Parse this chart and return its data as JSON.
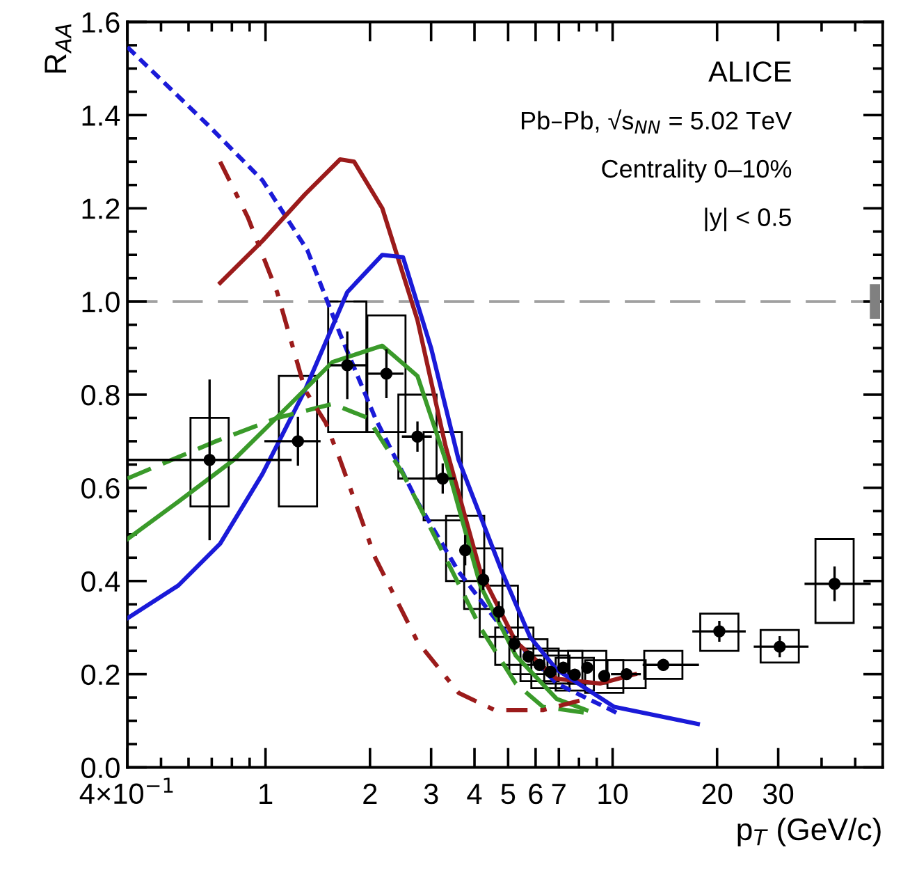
{
  "chart_data": {
    "type": "scatter",
    "xlabel": "p$_{T}$ (GeV/c)",
    "ylabel": "R$_{AA}$",
    "log": "x",
    "xlim": [
      0.4,
      60
    ],
    "ylim": [
      0,
      1.6
    ],
    "xticks": [
      {
        "value": 0.4,
        "label": "4×10$^{−1}$"
      },
      {
        "value": 0.5,
        "label": null
      },
      {
        "value": 0.6,
        "label": null
      },
      {
        "value": 0.7,
        "label": null
      },
      {
        "value": 0.8,
        "label": null
      },
      {
        "value": 0.9,
        "label": null
      },
      1,
      2,
      3,
      4,
      5,
      6,
      7,
      {
        "value": 8,
        "label": null
      },
      {
        "value": 9,
        "label": null
      },
      10,
      20,
      30,
      {
        "value": 40,
        "label": null
      },
      {
        "value": 50,
        "label": null
      }
    ],
    "yticks": [
      {
        "value": 0,
        "label": "0.0"
      },
      0.2,
      0.4,
      0.6,
      0.8,
      {
        "value": 1,
        "label": "1.0"
      },
      1.2,
      1.4,
      1.6
    ],
    "grid": false,
    "ref_lines": [
      {
        "axis": "y",
        "value": 1,
        "color": "#a0a0a0",
        "line_style": "dashed"
      }
    ],
    "annotations": [
      "ALICE",
      "Pb–Pb, √s$_{NN}$ = 5.02 TeV",
      "Centrality 0–10%",
      "|y| < 0.5"
    ],
    "series": [
      {
        "type": "bar",
        "color": "#000000",
        "line_style": "solid",
        "x": [
          0.69,
          1.24,
          1.72,
          2.23,
          2.74,
          3.24,
          3.76,
          4.24,
          4.7,
          5.21,
          5.72,
          6.16,
          6.62,
          7.21,
          7.78,
          8.45,
          9.46,
          10.97,
          14.0,
          20.3,
          30.3,
          43.6
        ],
        "base": [
          0.56,
          0.56,
          0.72,
          0.72,
          0.62,
          0.53,
          0.4,
          0.34,
          0.28,
          0.22,
          0.2,
          0.185,
          0.17,
          0.18,
          0.165,
          0.18,
          0.16,
          0.17,
          0.19,
          0.25,
          0.225,
          0.31
        ],
        "values": [
          0.19,
          0.28,
          0.28,
          0.25,
          0.18,
          0.19,
          0.14,
          0.13,
          0.11,
          0.08,
          0.075,
          0.07,
          0.07,
          0.07,
          0.07,
          0.07,
          0.07,
          0.06,
          0.06,
          0.08,
          0.07,
          0.18
        ]
      },
      {
        "type": "bar",
        "color": "#808080",
        "x": [
          57
        ],
        "base": [
          0.965
        ],
        "values": [
          0.07
        ]
      },
      {
        "color": "#000000",
        "marker": "circle",
        "x": [
          0.69,
          1.24,
          1.72,
          2.23,
          2.74,
          3.24,
          3.76,
          4.24,
          4.7,
          5.21,
          5.72,
          6.16,
          6.62,
          7.21,
          7.78,
          8.45,
          9.46,
          10.97,
          14.0,
          20.3,
          30.3,
          43.6
        ],
        "values": [
          0.66,
          0.7,
          0.863,
          0.845,
          0.71,
          0.62,
          0.466,
          0.403,
          0.334,
          0.265,
          0.238,
          0.22,
          0.205,
          0.214,
          0.199,
          0.214,
          0.196,
          0.2,
          0.22,
          0.292,
          0.259,
          0.394
        ],
        "errors": [
          0.17,
          0.05,
          0.07,
          0.05,
          0.03,
          0.03,
          0.03,
          0.02,
          0.02,
          0.015,
          0.01,
          0.01,
          0.01,
          0.01,
          0.01,
          0.01,
          0.01,
          0.01,
          0.01,
          0.02,
          0.02,
          0.035
        ],
        "xerrors": [
          [
            0.4,
            1.18
          ],
          [
            1.0,
            1.43
          ],
          [
            1.55,
            1.94
          ],
          0.25,
          0.25,
          0.25,
          null,
          null,
          null,
          null,
          null,
          null,
          null,
          null,
          null,
          null,
          null,
          1,
          [
            12.3,
            17.6
          ],
          [
            17.1,
            24.0
          ],
          [
            25.7,
            36.4
          ],
          [
            36,
            55
          ]
        ]
      },
      {
        "type": "line",
        "color": "#1a1ad8",
        "line_style": "dotted",
        "x": [
          0.4,
          0.68,
          0.98,
          1.32,
          1.64,
          2.07,
          2.74,
          3.6,
          4.8,
          6.9,
          10.1,
          10.6
        ],
        "values": [
          1.546,
          1.38,
          1.26,
          1.11,
          0.93,
          0.75,
          0.57,
          0.42,
          0.3,
          0.18,
          0.12,
          0.11
        ]
      },
      {
        "type": "line",
        "color": "#9b1b1b",
        "line_style": "solid",
        "x": [
          0.74,
          0.98,
          1.3,
          1.64,
          1.8,
          2.17,
          2.74,
          3.3,
          4.16,
          5.26,
          6.9,
          9.2,
          11.6
        ],
        "values": [
          1.04,
          1.13,
          1.23,
          1.305,
          1.3,
          1.2,
          0.96,
          0.69,
          0.42,
          0.27,
          0.19,
          0.18,
          0.2
        ]
      },
      {
        "type": "line",
        "color": "#1a1ad8",
        "line_style": "solid",
        "x": [
          0.4,
          0.56,
          0.74,
          0.98,
          1.3,
          1.72,
          2.17,
          2.49,
          3.0,
          3.6,
          4.8,
          5.78,
          6.9,
          10.1,
          17.6
        ],
        "values": [
          0.32,
          0.39,
          0.48,
          0.63,
          0.81,
          1.02,
          1.1,
          1.095,
          0.9,
          0.66,
          0.42,
          0.28,
          0.21,
          0.13,
          0.093
        ]
      },
      {
        "type": "line",
        "color": "#3a9a2a",
        "line_style": "solid",
        "x": [
          0.4,
          0.56,
          0.81,
          1.18,
          1.56,
          2.17,
          2.74,
          3.3,
          4.16,
          5.26,
          6.9,
          8.4
        ],
        "values": [
          0.49,
          0.57,
          0.66,
          0.78,
          0.87,
          0.905,
          0.84,
          0.66,
          0.39,
          0.24,
          0.147,
          0.123
        ]
      },
      {
        "type": "line",
        "color": "#3a9a2a",
        "line_style": "dashed",
        "x": [
          0.4,
          0.72,
          1.08,
          1.56,
          1.97,
          2.49,
          3.3,
          4.16,
          5.26,
          6.3,
          8.4
        ],
        "values": [
          0.62,
          0.7,
          0.75,
          0.78,
          0.75,
          0.63,
          0.45,
          0.3,
          0.18,
          0.13,
          0.117
        ]
      },
      {
        "type": "line",
        "color": "#9b1b1b",
        "line_style": "dashdot",
        "x": [
          0.74,
          0.89,
          1.08,
          1.3,
          1.49,
          1.64,
          2.07,
          2.74,
          3.6,
          4.57,
          6.3,
          8.4
        ],
        "values": [
          1.3,
          1.18,
          1.02,
          0.81,
          0.74,
          0.66,
          0.45,
          0.27,
          0.16,
          0.123,
          0.123,
          0.147
        ]
      }
    ]
  }
}
